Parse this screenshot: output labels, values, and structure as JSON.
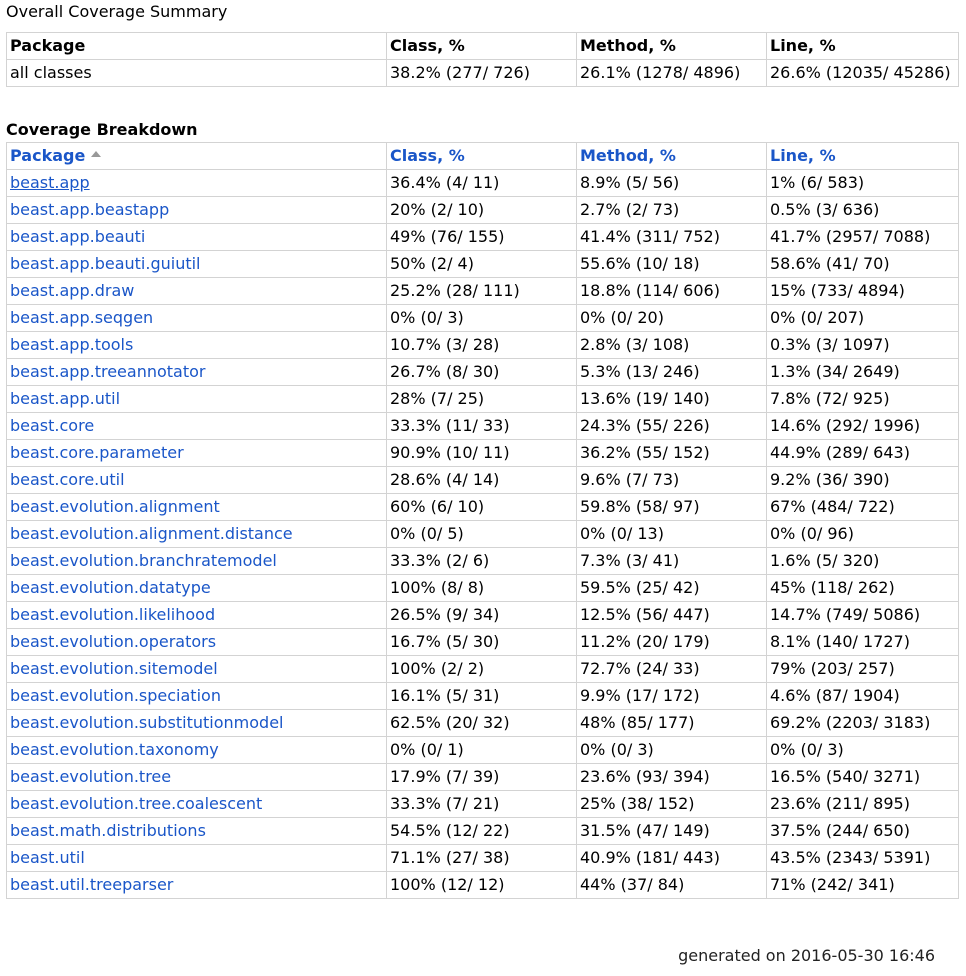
{
  "summary": {
    "title": "Overall Coverage Summary",
    "headers": [
      "Package",
      "Class, %",
      "Method, %",
      "Line, %"
    ],
    "row": [
      "all classes",
      "38.2% (277/ 726)",
      "26.1% (1278/ 4896)",
      "26.6% (12035/ 45286)"
    ]
  },
  "breakdown": {
    "title": "Coverage Breakdown",
    "headers": [
      "Package",
      "Class, %",
      "Method, %",
      "Line, %"
    ],
    "sort_icon": "sort-ascending-icon",
    "rows": [
      [
        "beast.app",
        "36.4% (4/ 11)",
        "8.9% (5/ 56)",
        "1% (6/ 583)"
      ],
      [
        "beast.app.beastapp",
        "20% (2/ 10)",
        "2.7% (2/ 73)",
        "0.5% (3/ 636)"
      ],
      [
        "beast.app.beauti",
        "49% (76/ 155)",
        "41.4% (311/ 752)",
        "41.7% (2957/ 7088)"
      ],
      [
        "beast.app.beauti.guiutil",
        "50% (2/ 4)",
        "55.6% (10/ 18)",
        "58.6% (41/ 70)"
      ],
      [
        "beast.app.draw",
        "25.2% (28/ 111)",
        "18.8% (114/ 606)",
        "15% (733/ 4894)"
      ],
      [
        "beast.app.seqgen",
        "0% (0/ 3)",
        "0% (0/ 20)",
        "0% (0/ 207)"
      ],
      [
        "beast.app.tools",
        "10.7% (3/ 28)",
        "2.8% (3/ 108)",
        "0.3% (3/ 1097)"
      ],
      [
        "beast.app.treeannotator",
        "26.7% (8/ 30)",
        "5.3% (13/ 246)",
        "1.3% (34/ 2649)"
      ],
      [
        "beast.app.util",
        "28% (7/ 25)",
        "13.6% (19/ 140)",
        "7.8% (72/ 925)"
      ],
      [
        "beast.core",
        "33.3% (11/ 33)",
        "24.3% (55/ 226)",
        "14.6% (292/ 1996)"
      ],
      [
        "beast.core.parameter",
        "90.9% (10/ 11)",
        "36.2% (55/ 152)",
        "44.9% (289/ 643)"
      ],
      [
        "beast.core.util",
        "28.6% (4/ 14)",
        "9.6% (7/ 73)",
        "9.2% (36/ 390)"
      ],
      [
        "beast.evolution.alignment",
        "60% (6/ 10)",
        "59.8% (58/ 97)",
        "67% (484/ 722)"
      ],
      [
        "beast.evolution.alignment.distance",
        "0% (0/ 5)",
        "0% (0/ 13)",
        "0% (0/ 96)"
      ],
      [
        "beast.evolution.branchratemodel",
        "33.3% (2/ 6)",
        "7.3% (3/ 41)",
        "1.6% (5/ 320)"
      ],
      [
        "beast.evolution.datatype",
        "100% (8/ 8)",
        "59.5% (25/ 42)",
        "45% (118/ 262)"
      ],
      [
        "beast.evolution.likelihood",
        "26.5% (9/ 34)",
        "12.5% (56/ 447)",
        "14.7% (749/ 5086)"
      ],
      [
        "beast.evolution.operators",
        "16.7% (5/ 30)",
        "11.2% (20/ 179)",
        "8.1% (140/ 1727)"
      ],
      [
        "beast.evolution.sitemodel",
        "100% (2/ 2)",
        "72.7% (24/ 33)",
        "79% (203/ 257)"
      ],
      [
        "beast.evolution.speciation",
        "16.1% (5/ 31)",
        "9.9% (17/ 172)",
        "4.6% (87/ 1904)"
      ],
      [
        "beast.evolution.substitutionmodel",
        "62.5% (20/ 32)",
        "48% (85/ 177)",
        "69.2% (2203/ 3183)"
      ],
      [
        "beast.evolution.taxonomy",
        "0% (0/ 1)",
        "0% (0/ 3)",
        "0% (0/ 3)"
      ],
      [
        "beast.evolution.tree",
        "17.9% (7/ 39)",
        "23.6% (93/ 394)",
        "16.5% (540/ 3271)"
      ],
      [
        "beast.evolution.tree.coalescent",
        "33.3% (7/ 21)",
        "25% (38/ 152)",
        "23.6% (211/ 895)"
      ],
      [
        "beast.math.distributions",
        "54.5% (12/ 22)",
        "31.5% (47/ 149)",
        "37.5% (244/ 650)"
      ],
      [
        "beast.util",
        "71.1% (27/ 38)",
        "40.9% (181/ 443)",
        "43.5% (2343/ 5391)"
      ],
      [
        "beast.util.treeparser",
        "100% (12/ 12)",
        "44% (37/ 84)",
        "71% (242/ 341)"
      ]
    ]
  },
  "footer": "generated on 2016-05-30 16:46",
  "colors": {
    "link": "#1a56c8",
    "border": "#d3d3d3"
  }
}
